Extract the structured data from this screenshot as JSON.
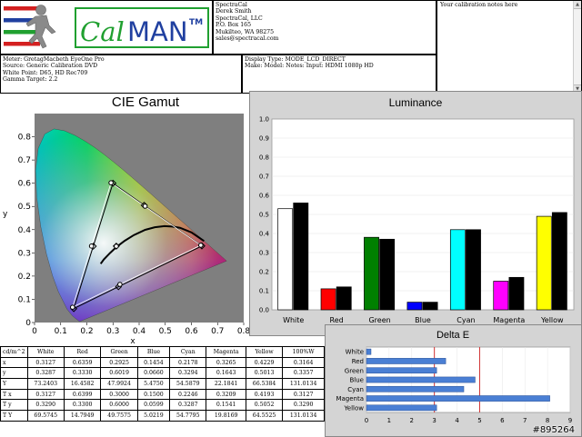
{
  "logo": {
    "brand_a": "Cal",
    "brand_b": "MAN",
    "tm": "TM"
  },
  "company": {
    "lines": [
      "SpectraCal",
      "Derek Smith",
      "SpectraCal, LLC",
      "P.O. Box 165",
      "Mukilteo, WA 98275",
      "sales@spectracal.com"
    ]
  },
  "notes": {
    "text": "Your calibration notes here"
  },
  "meter": {
    "lines": [
      "Meter: GretagMacbeth EyeOne Pro",
      "Source: Generic Calibration DVD",
      "White Point: D65, HD Rec709",
      "Gamma Target: 2.2"
    ]
  },
  "display": {
    "lines": [
      "Display Type: MODE_LCD_DIRECT",
      "Make: Model: Notes: Input: HDMI 1080p HD"
    ]
  },
  "cie": {
    "title": "CIE Gamut",
    "xlabel": "x",
    "ylabel": "y",
    "xticks": [
      "0",
      "0.1",
      "0.2",
      "0.3",
      "0.4",
      "0.5",
      "0.6",
      "0.7",
      "0.8"
    ],
    "yticks": [
      "0",
      "0.1",
      "0.2",
      "0.3",
      "0.4",
      "0.5",
      "0.6",
      "0.7",
      "0.8"
    ]
  },
  "table": {
    "headers": [
      "cd/m^2",
      "White",
      "Red",
      "Green",
      "Blue",
      "Cyan",
      "Magenta",
      "Yellow",
      "100%W"
    ],
    "rows": [
      [
        "x",
        "0.3127",
        "0.6359",
        "0.2925",
        "0.1454",
        "0.2178",
        "0.3265",
        "0.4229",
        "0.3164"
      ],
      [
        "y",
        "0.3287",
        "0.3330",
        "0.6019",
        "0.0660",
        "0.3294",
        "0.1643",
        "0.5013",
        "0.3357"
      ],
      [
        "Y",
        "73.2403",
        "16.4582",
        "47.9924",
        "5.4750",
        "54.5879",
        "22.1841",
        "66.5384",
        "131.0134"
      ],
      [
        "T x",
        "0.3127",
        "0.6399",
        "0.3000",
        "0.1500",
        "0.2246",
        "0.3209",
        "0.4193",
        "0.3127"
      ],
      [
        "T y",
        "0.3290",
        "0.3300",
        "0.6000",
        "0.0599",
        "0.3287",
        "0.1541",
        "0.5052",
        "0.3290"
      ],
      [
        "T Y",
        "69.5745",
        "14.7949",
        "49.7575",
        "5.0219",
        "54.7795",
        "19.8169",
        "64.5525",
        "131.0134"
      ]
    ]
  },
  "watermark": "#895264",
  "chart_data": [
    {
      "type": "bar",
      "title": "Luminance",
      "categories": [
        "White",
        "Red",
        "Green",
        "Blue",
        "Cyan",
        "Magenta",
        "Yellow"
      ],
      "colors": [
        "#ffffff",
        "#ff0000",
        "#008000",
        "#0000ff",
        "#00ffff",
        "#ff00ff",
        "#ffff00"
      ],
      "series": [
        {
          "values": [
            0.53,
            0.11,
            0.38,
            0.04,
            0.42,
            0.15,
            0.49
          ]
        },
        {
          "values": [
            0.56,
            0.12,
            0.37,
            0.04,
            0.42,
            0.17,
            0.51
          ],
          "color": "#000000"
        }
      ],
      "ylim": [
        0,
        1.0
      ],
      "yticks": [
        "0.0",
        "0.1",
        "0.2",
        "0.3",
        "0.4",
        "0.5",
        "0.6",
        "0.7",
        "0.8",
        "0.9",
        "1.0"
      ]
    },
    {
      "type": "bar",
      "orientation": "horizontal",
      "title": "Delta E",
      "categories": [
        "White",
        "Red",
        "Green",
        "Blue",
        "Cyan",
        "Magenta",
        "Yellow"
      ],
      "values": [
        0.2,
        3.5,
        3.1,
        4.8,
        4.3,
        8.1,
        3.1
      ],
      "xlim": [
        0,
        9
      ],
      "xticks": [
        "0",
        "1",
        "2",
        "3",
        "4",
        "5",
        "6",
        "7",
        "8",
        "9"
      ],
      "reference_lines": [
        3,
        5
      ]
    },
    {
      "type": "scatter",
      "title": "CIE Gamut",
      "xlim": [
        0,
        0.8
      ],
      "ylim": [
        0,
        0.9
      ],
      "measured": [
        {
          "name": "White",
          "x": 0.3127,
          "y": 0.3287
        },
        {
          "name": "Red",
          "x": 0.6359,
          "y": 0.333
        },
        {
          "name": "Green",
          "x": 0.2925,
          "y": 0.6019
        },
        {
          "name": "Blue",
          "x": 0.1454,
          "y": 0.066
        },
        {
          "name": "Cyan",
          "x": 0.2178,
          "y": 0.3294
        },
        {
          "name": "Magenta",
          "x": 0.3265,
          "y": 0.1643
        },
        {
          "name": "Yellow",
          "x": 0.4229,
          "y": 0.5013
        }
      ],
      "targets": [
        {
          "name": "White",
          "x": 0.3127,
          "y": 0.329
        },
        {
          "name": "Red",
          "x": 0.6399,
          "y": 0.33
        },
        {
          "name": "Green",
          "x": 0.3,
          "y": 0.6
        },
        {
          "name": "Blue",
          "x": 0.15,
          "y": 0.0599
        },
        {
          "name": "Cyan",
          "x": 0.2246,
          "y": 0.3287
        },
        {
          "name": "Magenta",
          "x": 0.3209,
          "y": 0.1541
        },
        {
          "name": "Yellow",
          "x": 0.4193,
          "y": 0.5052
        }
      ]
    }
  ]
}
